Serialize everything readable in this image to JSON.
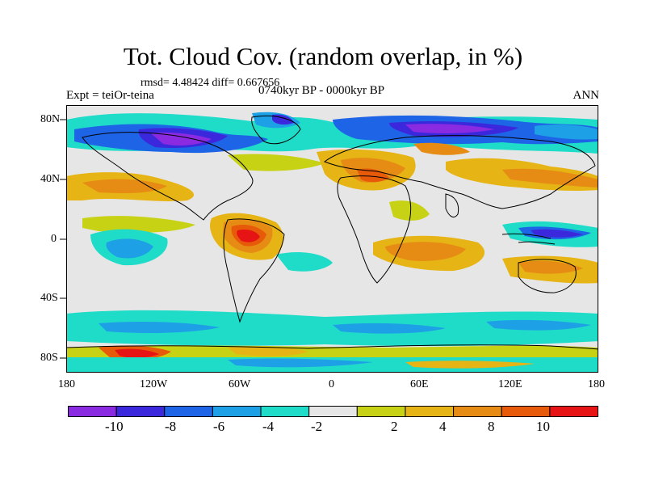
{
  "title": "Tot. Cloud Cov. (random overlap, in %)",
  "stats": "rmsd= 4.48424 diff= 0.667656",
  "experiment": "Expt = teiOr-teina",
  "period": "0740kyr BP - 0000kyr BP",
  "season": "ANN",
  "lat_labels": [
    "80N",
    "40N",
    "0",
    "40S",
    "80S"
  ],
  "lon_labels": [
    "180",
    "120W",
    "60W",
    "0",
    "60E",
    "120E",
    "180"
  ],
  "colorbar": {
    "colors": [
      "#8a2be2",
      "#3c28dc",
      "#1e64e6",
      "#1ea0e6",
      "#1edcc8",
      "#e6e6e6",
      "#c8d214",
      "#e6b414",
      "#e68c14",
      "#e65a0a",
      "#e61414"
    ],
    "tick_labels": [
      "-10",
      "-8",
      "-6",
      "-4",
      "-2",
      "2",
      "4",
      "8",
      "10"
    ]
  },
  "map_colors": {
    "land_line": "#000000",
    "background": "#e6e6e6"
  }
}
